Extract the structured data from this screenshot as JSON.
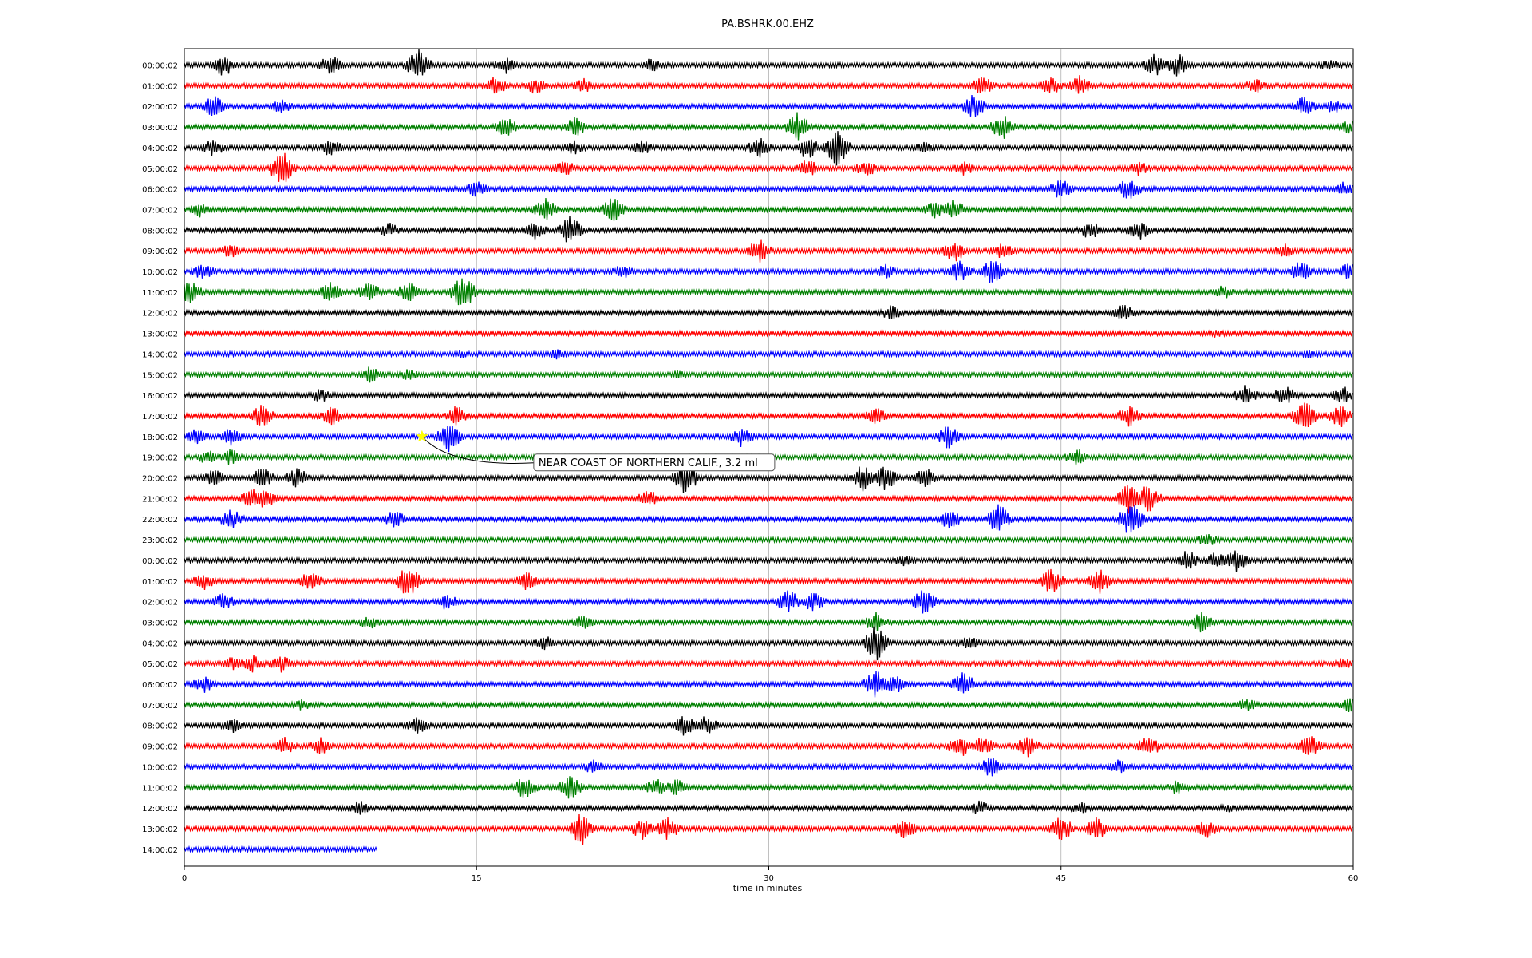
{
  "chart_data": {
    "type": "line",
    "title": "PA.BSHRK.00.EHZ",
    "xlabel": "time in minutes",
    "ylabel": "",
    "xlim": [
      0,
      60
    ],
    "xticks": [
      0,
      15,
      30,
      45,
      60
    ],
    "grid": "vertical lines at 15, 30, 45",
    "trace_colors": [
      "#000000",
      "#ff0000",
      "#0000ff",
      "#008000"
    ],
    "row_labels": [
      "00:00:02",
      "01:00:02",
      "02:00:02",
      "03:00:02",
      "04:00:02",
      "05:00:02",
      "06:00:02",
      "07:00:02",
      "08:00:02",
      "09:00:02",
      "10:00:02",
      "11:00:02",
      "12:00:02",
      "13:00:02",
      "14:00:02",
      "15:00:02",
      "16:00:02",
      "17:00:02",
      "18:00:02",
      "19:00:02",
      "20:00:02",
      "21:00:02",
      "22:00:02",
      "23:00:02",
      "00:00:02",
      "01:00:02",
      "02:00:02",
      "03:00:02",
      "04:00:02",
      "05:00:02",
      "06:00:02",
      "07:00:02",
      "08:00:02",
      "09:00:02",
      "10:00:02",
      "11:00:02",
      "12:00:02",
      "13:00:02",
      "14:00:02"
    ],
    "last_row_end_minute": 9.9,
    "event": {
      "row": 18,
      "minute": 12.2,
      "marker": "star",
      "marker_color": "#ffff00",
      "label": "NEAR COAST OF NORTHERN CALIF., 3.2 ml"
    },
    "bursts": [
      [
        [
          12,
          2.2
        ],
        [
          2,
          1.6
        ],
        [
          7.5,
          1.4
        ],
        [
          16.5,
          1.2
        ],
        [
          24,
          1
        ],
        [
          49.8,
          1.6
        ],
        [
          51,
          1.6
        ],
        [
          58.8,
          0.8
        ]
      ],
      [
        [
          16,
          1.4
        ],
        [
          18,
          1.2
        ],
        [
          20.5,
          1
        ],
        [
          41,
          1.4
        ],
        [
          44.5,
          1.2
        ],
        [
          46,
          1.4
        ],
        [
          55,
          1
        ]
      ],
      [
        [
          1.5,
          1.4
        ],
        [
          5,
          1
        ],
        [
          40.5,
          1.6
        ],
        [
          57.5,
          1.4
        ],
        [
          59,
          1
        ]
      ],
      [
        [
          16.5,
          1.4
        ],
        [
          20,
          1.4
        ],
        [
          31.5,
          2
        ],
        [
          42,
          1.8
        ],
        [
          59.8,
          1
        ]
      ],
      [
        [
          1.5,
          1.2
        ],
        [
          7.5,
          1.2
        ],
        [
          20,
          1
        ],
        [
          23.5,
          1
        ],
        [
          29.5,
          1.4
        ],
        [
          32,
          1.6
        ],
        [
          33.5,
          2.4
        ],
        [
          38,
          1
        ]
      ],
      [
        [
          5,
          2.4
        ],
        [
          19.5,
          1.2
        ],
        [
          32,
          1.2
        ],
        [
          35,
          1.2
        ],
        [
          40,
          1
        ],
        [
          49,
          1
        ]
      ],
      [
        [
          15,
          1.2
        ],
        [
          45,
          1.4
        ],
        [
          48.5,
          1.6
        ],
        [
          59.5,
          1
        ]
      ],
      [
        [
          0.8,
          1
        ],
        [
          18.5,
          1.6
        ],
        [
          22,
          1.8
        ],
        [
          38.5,
          1.2
        ],
        [
          39.5,
          1.4
        ]
      ],
      [
        [
          10.5,
          1
        ],
        [
          18,
          1.4
        ],
        [
          19.8,
          2
        ],
        [
          46.5,
          1.4
        ],
        [
          49,
          1.4
        ]
      ],
      [
        [
          2.4,
          1
        ],
        [
          29.5,
          1.6
        ],
        [
          39.5,
          1.6
        ],
        [
          42,
          1.2
        ],
        [
          56.5,
          1
        ]
      ],
      [
        [
          1,
          1.2
        ],
        [
          22.5,
          1
        ],
        [
          36,
          1
        ],
        [
          39.8,
          1.4
        ],
        [
          41.5,
          1.8
        ],
        [
          57.3,
          1.4
        ],
        [
          59.8,
          1.2
        ]
      ],
      [
        [
          0.3,
          1.6
        ],
        [
          7.5,
          1.4
        ],
        [
          9.5,
          1.4
        ],
        [
          11.5,
          1.4
        ],
        [
          14.3,
          2.4
        ],
        [
          53.3,
          1
        ]
      ],
      [
        [
          36.3,
          1
        ],
        [
          48.2,
          1.2
        ],
        [
          38.8,
          0.6
        ]
      ],
      [
        [
          53,
          0.6
        ]
      ],
      [
        [
          19.1,
          0.8
        ],
        [
          14.2,
          0.6
        ],
        [
          57.8,
          0.6
        ]
      ],
      [
        [
          9.6,
          1.2
        ],
        [
          11.5,
          0.8
        ],
        [
          25.3,
          0.6
        ]
      ],
      [
        [
          7,
          1
        ],
        [
          54.5,
          1.4
        ],
        [
          56.5,
          1.4
        ],
        [
          59.5,
          1.2
        ]
      ],
      [
        [
          4,
          1.6
        ],
        [
          7.5,
          1.4
        ],
        [
          14,
          1.4
        ],
        [
          35.5,
          1.2
        ],
        [
          48.5,
          1.4
        ],
        [
          57.5,
          2
        ],
        [
          59.3,
          1.6
        ]
      ],
      [
        [
          0.6,
          1.2
        ],
        [
          2.4,
          1.2
        ],
        [
          13.6,
          2
        ],
        [
          28.6,
          1.4
        ],
        [
          39.2,
          1.6
        ]
      ],
      [
        [
          1.2,
          1
        ],
        [
          2.4,
          1.2
        ],
        [
          45.8,
          1.2
        ]
      ],
      [
        [
          1.5,
          1.2
        ],
        [
          4,
          1.4
        ],
        [
          5.8,
          1.4
        ],
        [
          25.7,
          2.4
        ],
        [
          34.8,
          1.8
        ],
        [
          36,
          1.8
        ],
        [
          38,
          1.4
        ]
      ],
      [
        [
          3.5,
          1.4
        ],
        [
          4.2,
          1.6
        ],
        [
          23.8,
          1.2
        ],
        [
          48.5,
          2
        ],
        [
          49.5,
          2
        ]
      ],
      [
        [
          2.4,
          1.4
        ],
        [
          10.8,
          1.2
        ],
        [
          39.3,
          1.4
        ],
        [
          41.8,
          2
        ],
        [
          48.6,
          2.4
        ]
      ],
      [
        [
          52.5,
          1
        ]
      ],
      [
        [
          37,
          1
        ],
        [
          51.5,
          1.4
        ],
        [
          53,
          1.2
        ],
        [
          54,
          1.6
        ]
      ],
      [
        [
          1,
          1.2
        ],
        [
          6.5,
          1.4
        ],
        [
          11.5,
          2.2
        ],
        [
          17.6,
          1.4
        ],
        [
          44.5,
          1.8
        ],
        [
          47,
          1.6
        ]
      ],
      [
        [
          2,
          1.2
        ],
        [
          13.5,
          1.2
        ],
        [
          31,
          1.6
        ],
        [
          32.3,
          1.4
        ],
        [
          38,
          1.8
        ]
      ],
      [
        [
          9.5,
          1
        ],
        [
          20.5,
          1
        ],
        [
          35.5,
          1.4
        ],
        [
          52.2,
          1.4
        ]
      ],
      [
        [
          18.5,
          1
        ],
        [
          35.5,
          2.4
        ],
        [
          40.3,
          1
        ]
      ],
      [
        [
          2.5,
          1
        ],
        [
          3.5,
          1.2
        ],
        [
          5,
          1.2
        ],
        [
          59.5,
          0.8
        ]
      ],
      [
        [
          1,
          1.2
        ],
        [
          35.5,
          2
        ],
        [
          36.5,
          1.4
        ],
        [
          40,
          1.6
        ]
      ],
      [
        [
          6,
          0.8
        ],
        [
          54.5,
          1
        ],
        [
          59.8,
          1.2
        ]
      ],
      [
        [
          2.5,
          1
        ],
        [
          12,
          1.2
        ],
        [
          25.7,
          1.4
        ],
        [
          26.8,
          1.4
        ]
      ],
      [
        [
          5.2,
          1.2
        ],
        [
          7,
          1.2
        ],
        [
          39.8,
          1.6
        ],
        [
          41,
          1.4
        ],
        [
          43.3,
          1.4
        ],
        [
          49.5,
          1.6
        ],
        [
          57.8,
          1.6
        ]
      ],
      [
        [
          21,
          1
        ],
        [
          41.4,
          1.4
        ],
        [
          48,
          1
        ]
      ],
      [
        [
          17.5,
          1.6
        ],
        [
          19.8,
          1.6
        ],
        [
          24.2,
          1.2
        ],
        [
          25.3,
          1.2
        ],
        [
          51,
          1
        ]
      ],
      [
        [
          9,
          1
        ],
        [
          40.8,
          1
        ],
        [
          46,
          0.8
        ],
        [
          53.6,
          0.6
        ]
      ],
      [
        [
          20.4,
          2.2
        ],
        [
          23.5,
          1.6
        ],
        [
          24.8,
          1.6
        ],
        [
          37,
          1.4
        ],
        [
          45,
          1.8
        ],
        [
          46.8,
          1.6
        ],
        [
          52.5,
          1.2
        ]
      ],
      []
    ]
  }
}
